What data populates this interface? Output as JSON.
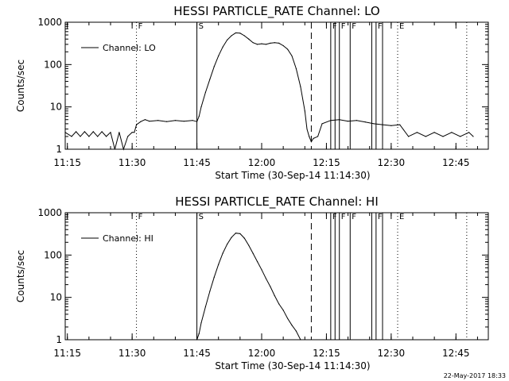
{
  "footer_timestamp": "22-May-2017 18:33",
  "chart_data": [
    {
      "type": "line",
      "title": "HESSI PARTICLE_RATE Channel: LO",
      "xlabel": "Start Time (30-Sep-14 11:14:30)",
      "ylabel": "Counts/sec",
      "yscale": "log",
      "xlim": [
        "11:14:30",
        "12:52:30"
      ],
      "ylim": [
        1,
        1000
      ],
      "x_ticks": [
        "11:15",
        "11:30",
        "11:45",
        "12:00",
        "12:15",
        "12:30",
        "12:45"
      ],
      "y_ticks": [
        "1",
        "10",
        "100",
        "1000"
      ],
      "legend": {
        "placement": "top-left",
        "entries": [
          "Channel: LO"
        ]
      },
      "grid": false,
      "series": [
        {
          "name": "Channel: LO",
          "x": [
            "11:14:30",
            "11:16:00",
            "11:17:00",
            "11:18:00",
            "11:19:00",
            "11:20:00",
            "11:21:00",
            "11:22:00",
            "11:23:00",
            "11:24:00",
            "11:25:00",
            "11:26:00",
            "11:27:00",
            "11:28:00",
            "11:29:00",
            "11:30:00",
            "11:30:30",
            "11:31:00",
            "11:32:00",
            "11:33:00",
            "11:34:00",
            "11:36:00",
            "11:38:00",
            "11:40:00",
            "11:42:00",
            "11:44:00",
            "11:45:00",
            "11:45:30",
            "11:46:00",
            "11:47:00",
            "11:48:00",
            "11:49:00",
            "11:50:00",
            "11:51:00",
            "11:52:00",
            "11:53:00",
            "11:54:00",
            "11:55:00",
            "11:56:00",
            "11:57:00",
            "11:58:00",
            "11:59:00",
            "12:00:00",
            "12:01:00",
            "12:02:00",
            "12:03:00",
            "12:04:00",
            "12:05:00",
            "12:06:00",
            "12:07:00",
            "12:08:00",
            "12:09:00",
            "12:10:00",
            "12:10:30",
            "12:11:00",
            "12:11:30",
            "12:12:00",
            "12:13:00",
            "12:14:00",
            "12:16:00",
            "12:18:00",
            "12:20:00",
            "12:22:00",
            "12:24:00",
            "12:26:00",
            "12:28:00",
            "12:30:00",
            "12:32:00",
            "12:34:00",
            "12:36:00",
            "12:38:00",
            "12:40:00",
            "12:42:00",
            "12:44:00",
            "12:46:00",
            "12:48:00",
            "12:49:00"
          ],
          "y": [
            2.5,
            2.0,
            2.6,
            2.0,
            2.6,
            2.0,
            2.6,
            2.0,
            2.6,
            2.0,
            2.5,
            1.0,
            2.5,
            1.0,
            2.0,
            2.5,
            2.5,
            3.8,
            4.5,
            5.0,
            4.6,
            4.8,
            4.5,
            4.8,
            4.6,
            4.8,
            4.5,
            6.0,
            10,
            22,
            45,
            90,
            160,
            260,
            380,
            480,
            560,
            550,
            480,
            400,
            330,
            300,
            310,
            300,
            320,
            330,
            320,
            280,
            230,
            160,
            80,
            30,
            8,
            3,
            2,
            1.5,
            1.8,
            2.0,
            4.0,
            4.8,
            5.0,
            4.6,
            4.8,
            4.4,
            4.0,
            3.8,
            3.6,
            3.8,
            2.0,
            2.5,
            2.0,
            2.5,
            2.0,
            2.5,
            2.0,
            2.5,
            2.0
          ]
        }
      ],
      "markers": [
        {
          "time": "11:31:00",
          "label": "F",
          "style": "dotted"
        },
        {
          "time": "11:45:00",
          "label": "S",
          "style": "solid"
        },
        {
          "time": "12:11:30",
          "label": "",
          "style": "dashed"
        },
        {
          "time": "12:16:00",
          "label": "F",
          "style": "solid"
        },
        {
          "time": "12:17:00",
          "label": "",
          "style": "solid"
        },
        {
          "time": "12:18:00",
          "label": "F",
          "style": "solid"
        },
        {
          "time": "12:20:30",
          "label": "F",
          "style": "solid"
        },
        {
          "time": "12:25:30",
          "label": "",
          "style": "solid"
        },
        {
          "time": "12:26:30",
          "label": "F",
          "style": "solid"
        },
        {
          "time": "12:28:00",
          "label": "",
          "style": "solid"
        },
        {
          "time": "12:31:30",
          "label": "E",
          "style": "dotted"
        },
        {
          "time": "12:47:30",
          "label": "",
          "style": "dotted"
        }
      ]
    },
    {
      "type": "line",
      "title": "HESSI PARTICLE_RATE Channel: HI",
      "xlabel": "Start Time (30-Sep-14 11:14:30)",
      "ylabel": "Counts/sec",
      "yscale": "log",
      "xlim": [
        "11:14:30",
        "12:52:30"
      ],
      "ylim": [
        1,
        1000
      ],
      "x_ticks": [
        "11:15",
        "11:30",
        "11:45",
        "12:00",
        "12:15",
        "12:30",
        "12:45"
      ],
      "y_ticks": [
        "1",
        "10",
        "100",
        "1000"
      ],
      "legend": {
        "placement": "top-left",
        "entries": [
          "Channel: HI"
        ]
      },
      "grid": false,
      "series": [
        {
          "name": "Channel: HI",
          "x": [
            "11:45:00",
            "11:45:30",
            "11:46:00",
            "11:47:00",
            "11:48:00",
            "11:49:00",
            "11:50:00",
            "11:51:00",
            "11:52:00",
            "11:53:00",
            "11:54:00",
            "11:55:00",
            "11:56:00",
            "11:57:00",
            "11:58:00",
            "11:59:00",
            "12:00:00",
            "12:01:00",
            "12:02:00",
            "12:03:00",
            "12:04:00",
            "12:05:00",
            "12:06:00",
            "12:07:00",
            "12:08:00",
            "12:09:00"
          ],
          "y": [
            1.0,
            1.4,
            2.5,
            6,
            14,
            30,
            60,
            110,
            180,
            260,
            330,
            320,
            250,
            170,
            110,
            70,
            45,
            28,
            18,
            11,
            7,
            5,
            3.2,
            2.2,
            1.6,
            1.0
          ]
        }
      ],
      "markers": [
        {
          "time": "11:31:00",
          "label": "F",
          "style": "dotted"
        },
        {
          "time": "11:45:00",
          "label": "S",
          "style": "solid"
        },
        {
          "time": "12:11:30",
          "label": "",
          "style": "dashed"
        },
        {
          "time": "12:16:00",
          "label": "F",
          "style": "solid"
        },
        {
          "time": "12:17:00",
          "label": "",
          "style": "solid"
        },
        {
          "time": "12:18:00",
          "label": "F",
          "style": "solid"
        },
        {
          "time": "12:20:30",
          "label": "F",
          "style": "solid"
        },
        {
          "time": "12:25:30",
          "label": "",
          "style": "solid"
        },
        {
          "time": "12:26:30",
          "label": "F",
          "style": "solid"
        },
        {
          "time": "12:28:00",
          "label": "",
          "style": "solid"
        },
        {
          "time": "12:31:30",
          "label": "E",
          "style": "dotted"
        },
        {
          "time": "12:47:30",
          "label": "",
          "style": "dotted"
        }
      ]
    }
  ]
}
